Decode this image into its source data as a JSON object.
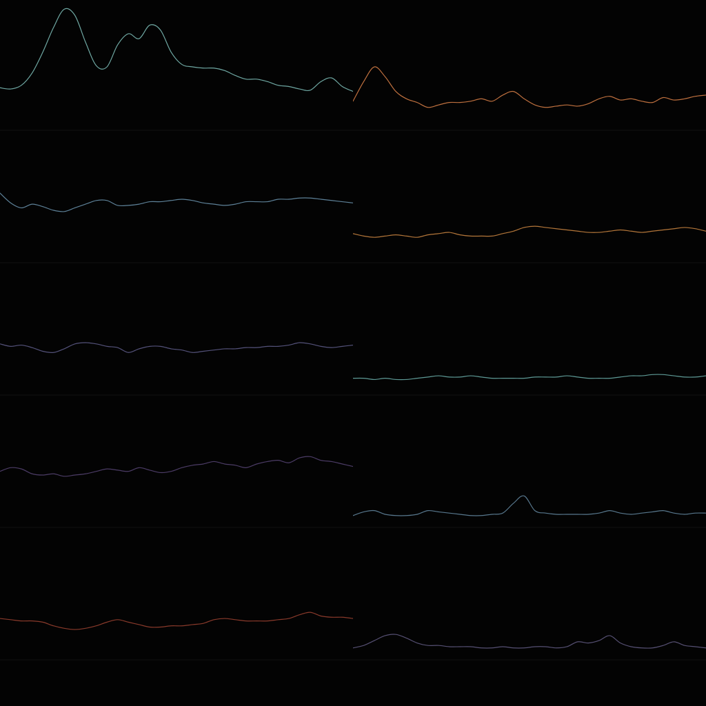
{
  "chart_data": [
    {
      "type": "line",
      "ylim": [
        0,
        1
      ],
      "grid": false,
      "series": [
        {
          "color": "#6fa8a3",
          "values": [
            0.33,
            0.32,
            0.35,
            0.45,
            0.62,
            0.82,
            0.97,
            0.92,
            0.7,
            0.51,
            0.5,
            0.68,
            0.77,
            0.73,
            0.84,
            0.8,
            0.62,
            0.52,
            0.5,
            0.49,
            0.49,
            0.47,
            0.43,
            0.4,
            0.4,
            0.38,
            0.35,
            0.34,
            0.32,
            0.31,
            0.38,
            0.41,
            0.34,
            0.3
          ]
        }
      ]
    },
    {
      "type": "line",
      "ylim": [
        0,
        1
      ],
      "grid": false,
      "series": [
        {
          "color": "#c0713f",
          "values": [
            0.22,
            0.38,
            0.5,
            0.42,
            0.3,
            0.24,
            0.21,
            0.17,
            0.19,
            0.21,
            0.21,
            0.22,
            0.24,
            0.22,
            0.27,
            0.3,
            0.24,
            0.19,
            0.17,
            0.18,
            0.19,
            0.18,
            0.2,
            0.24,
            0.26,
            0.23,
            0.24,
            0.22,
            0.21,
            0.25,
            0.23,
            0.24,
            0.26,
            0.27
          ]
        }
      ]
    },
    {
      "type": "line",
      "ylim": [
        0,
        1
      ],
      "grid": false,
      "series": [
        {
          "color": "#5e8299",
          "values": [
            0.55,
            0.47,
            0.43,
            0.46,
            0.44,
            0.41,
            0.4,
            0.43,
            0.46,
            0.49,
            0.49,
            0.45,
            0.45,
            0.46,
            0.48,
            0.48,
            0.49,
            0.5,
            0.49,
            0.47,
            0.46,
            0.45,
            0.46,
            0.48,
            0.48,
            0.48,
            0.5,
            0.5,
            0.51,
            0.51,
            0.5,
            0.49,
            0.48,
            0.47
          ]
        }
      ]
    },
    {
      "type": "line",
      "ylim": [
        0,
        1
      ],
      "grid": false,
      "series": [
        {
          "color": "#b5773a",
          "values": [
            0.22,
            0.2,
            0.19,
            0.2,
            0.21,
            0.2,
            0.19,
            0.21,
            0.22,
            0.23,
            0.21,
            0.2,
            0.2,
            0.2,
            0.22,
            0.24,
            0.27,
            0.28,
            0.27,
            0.26,
            0.25,
            0.24,
            0.23,
            0.23,
            0.24,
            0.25,
            0.24,
            0.23,
            0.24,
            0.25,
            0.26,
            0.27,
            0.26,
            0.24
          ]
        }
      ]
    },
    {
      "type": "line",
      "ylim": [
        0,
        1
      ],
      "grid": false,
      "series": [
        {
          "color": "#54527a",
          "values": [
            0.4,
            0.38,
            0.39,
            0.37,
            0.34,
            0.33,
            0.36,
            0.4,
            0.41,
            0.4,
            0.38,
            0.37,
            0.33,
            0.36,
            0.38,
            0.38,
            0.36,
            0.35,
            0.33,
            0.34,
            0.35,
            0.36,
            0.36,
            0.37,
            0.37,
            0.38,
            0.38,
            0.39,
            0.41,
            0.4,
            0.38,
            0.37,
            0.38,
            0.39
          ]
        }
      ]
    },
    {
      "type": "line",
      "ylim": [
        0,
        1
      ],
      "grid": false,
      "series": [
        {
          "color": "#5e9a96",
          "values": [
            0.12,
            0.12,
            0.11,
            0.12,
            0.11,
            0.11,
            0.12,
            0.13,
            0.14,
            0.13,
            0.13,
            0.14,
            0.13,
            0.12,
            0.12,
            0.12,
            0.12,
            0.13,
            0.13,
            0.13,
            0.14,
            0.13,
            0.12,
            0.12,
            0.12,
            0.13,
            0.14,
            0.14,
            0.15,
            0.15,
            0.14,
            0.13,
            0.13,
            0.14
          ]
        }
      ]
    },
    {
      "type": "line",
      "ylim": [
        0,
        1
      ],
      "grid": false,
      "series": [
        {
          "color": "#4c3c66",
          "values": [
            0.44,
            0.47,
            0.46,
            0.42,
            0.41,
            0.42,
            0.4,
            0.41,
            0.42,
            0.44,
            0.46,
            0.45,
            0.44,
            0.47,
            0.45,
            0.43,
            0.44,
            0.47,
            0.49,
            0.5,
            0.52,
            0.5,
            0.49,
            0.47,
            0.5,
            0.52,
            0.53,
            0.51,
            0.55,
            0.56,
            0.53,
            0.52,
            0.5,
            0.48
          ]
        }
      ]
    },
    {
      "type": "line",
      "ylim": [
        0,
        1
      ],
      "grid": false,
      "series": [
        {
          "color": "#58788e",
          "values": [
            0.08,
            0.11,
            0.12,
            0.09,
            0.08,
            0.08,
            0.09,
            0.12,
            0.11,
            0.1,
            0.09,
            0.08,
            0.08,
            0.09,
            0.1,
            0.18,
            0.24,
            0.12,
            0.1,
            0.09,
            0.09,
            0.09,
            0.09,
            0.1,
            0.12,
            0.1,
            0.09,
            0.1,
            0.11,
            0.12,
            0.1,
            0.09,
            0.1,
            0.1
          ]
        }
      ]
    },
    {
      "type": "line",
      "ylim": [
        0,
        1
      ],
      "grid": false,
      "series": [
        {
          "color": "#8a3a2b",
          "values": [
            0.32,
            0.31,
            0.3,
            0.3,
            0.29,
            0.26,
            0.24,
            0.23,
            0.24,
            0.26,
            0.29,
            0.31,
            0.29,
            0.27,
            0.25,
            0.25,
            0.26,
            0.26,
            0.27,
            0.28,
            0.31,
            0.32,
            0.31,
            0.3,
            0.3,
            0.3,
            0.31,
            0.32,
            0.35,
            0.37,
            0.34,
            0.33,
            0.33,
            0.32
          ]
        }
      ]
    },
    {
      "type": "line",
      "ylim": [
        0,
        1
      ],
      "grid": false,
      "series": [
        {
          "color": "#565073",
          "values": [
            0.08,
            0.1,
            0.14,
            0.18,
            0.19,
            0.16,
            0.12,
            0.1,
            0.1,
            0.09,
            0.09,
            0.09,
            0.08,
            0.08,
            0.09,
            0.08,
            0.08,
            0.09,
            0.09,
            0.08,
            0.09,
            0.13,
            0.12,
            0.14,
            0.18,
            0.12,
            0.09,
            0.08,
            0.08,
            0.1,
            0.13,
            0.1,
            0.09,
            0.08
          ]
        }
      ]
    }
  ]
}
